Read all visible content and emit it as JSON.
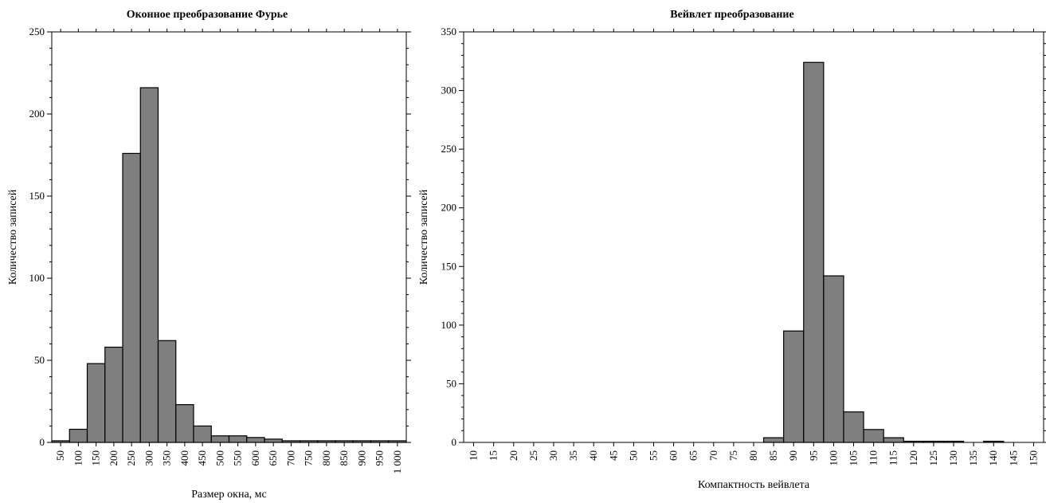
{
  "chart_data": [
    {
      "type": "bar",
      "title": "Оконное преобразование Фурье",
      "xlabel": "Размер окна, мс",
      "ylabel": "Количество записей",
      "ylim": [
        0,
        250
      ],
      "yticks": [
        0,
        50,
        100,
        150,
        200,
        250
      ],
      "categories": [
        "50",
        "100",
        "150",
        "200",
        "250",
        "300",
        "350",
        "400",
        "450",
        "500",
        "550",
        "600",
        "650",
        "700",
        "750",
        "800",
        "850",
        "900",
        "950",
        "1 000"
      ],
      "values": [
        1,
        8,
        48,
        58,
        176,
        216,
        62,
        23,
        10,
        4,
        4,
        3,
        2,
        1,
        1,
        1,
        1,
        1,
        1,
        1
      ],
      "grid": false
    },
    {
      "type": "bar",
      "title": "Вейвлет преобразование",
      "xlabel": "Компактность вейвлета",
      "ylabel": "Количество записей",
      "ylim": [
        0,
        350
      ],
      "yticks": [
        0,
        50,
        100,
        150,
        200,
        250,
        300,
        350
      ],
      "categories": [
        "10",
        "15",
        "20",
        "25",
        "30",
        "35",
        "40",
        "45",
        "50",
        "55",
        "60",
        "65",
        "70",
        "75",
        "80",
        "85",
        "90",
        "95",
        "100",
        "105",
        "110",
        "115",
        "120",
        "125",
        "130",
        "135",
        "140",
        "145",
        "150"
      ],
      "values": [
        0,
        0,
        0,
        0,
        0,
        0,
        0,
        0,
        0,
        0,
        0,
        0,
        0,
        0,
        0,
        4,
        95,
        324,
        142,
        26,
        11,
        4,
        1,
        1,
        1,
        0,
        1,
        0,
        0
      ],
      "grid": false
    }
  ]
}
